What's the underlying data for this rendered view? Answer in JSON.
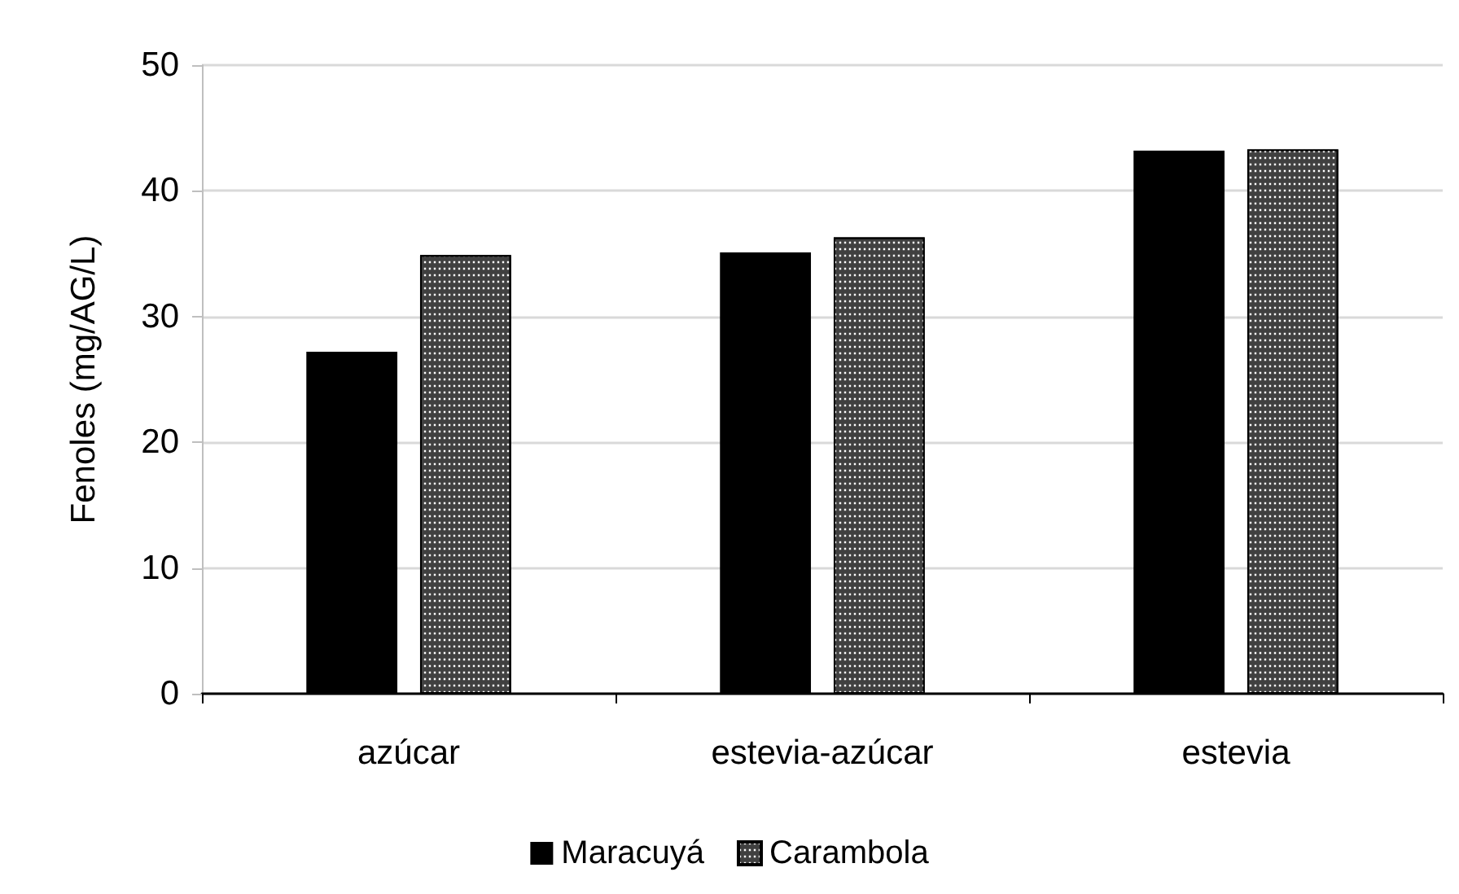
{
  "chart_data": {
    "type": "bar",
    "ylabel": "Fenoles (mg/AG/L)",
    "categories": [
      "azúcar",
      "estevia-azúcar",
      "estevia"
    ],
    "series": [
      {
        "name": "Maracuyá",
        "color": "#000000",
        "values": [
          27.2,
          35.1,
          43.2
        ]
      },
      {
        "name": "Carambola",
        "color": "#404040",
        "values": [
          34.9,
          36.3,
          43.3
        ]
      }
    ],
    "ylim": [
      0,
      50
    ],
    "yticks": [
      0,
      10,
      20,
      30,
      40,
      50
    ],
    "grid": "y",
    "legend": "bottom"
  }
}
